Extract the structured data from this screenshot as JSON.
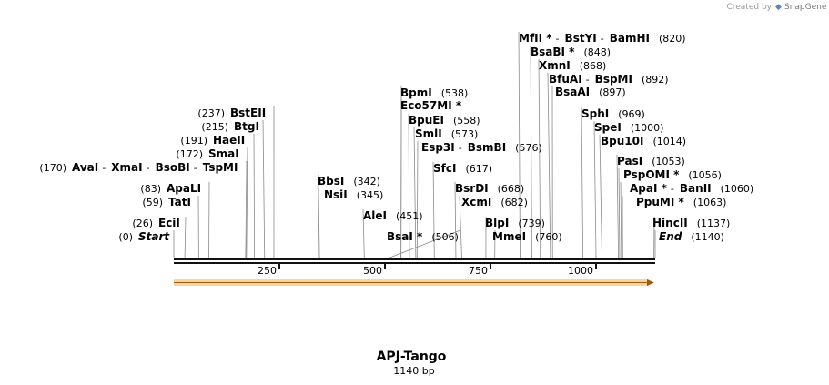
{
  "credit": {
    "created_by": "Created by",
    "brand": "SnapGene"
  },
  "construct": {
    "name": "APJ-Tango",
    "length_label": "1140 bp",
    "length": 1140
  },
  "scale": {
    "ticks": [
      250,
      500,
      750,
      1000
    ]
  },
  "colors": {
    "feature_fill": "#f5b043",
    "feature_stroke": "#c9893a",
    "backbone": "#111111"
  },
  "sites": [
    {
      "names": [
        "Start"
      ],
      "pos": "(0)",
      "loc": 0,
      "italic": true
    },
    {
      "names": [
        "EciI"
      ],
      "pos": "(26)",
      "loc": 26
    },
    {
      "names": [
        "TatI"
      ],
      "pos": "(59)",
      "loc": 59
    },
    {
      "names": [
        "ApaLI"
      ],
      "pos": "(83)",
      "loc": 83
    },
    {
      "names": [
        "AvaI",
        "XmaI",
        "BsoBI",
        "TspMI"
      ],
      "pos": "(170)",
      "loc": 170
    },
    {
      "names": [
        "SmaI"
      ],
      "pos": "(172)",
      "loc": 172
    },
    {
      "names": [
        "HaeII"
      ],
      "pos": "(191)",
      "loc": 191
    },
    {
      "names": [
        "BtgI"
      ],
      "pos": "(215)",
      "loc": 215
    },
    {
      "names": [
        "BstEII"
      ],
      "pos": "(237)",
      "loc": 237
    },
    {
      "names": [
        "BbsI"
      ],
      "pos": "(342)",
      "loc": 342
    },
    {
      "names": [
        "NsiI"
      ],
      "pos": "(345)",
      "loc": 345
    },
    {
      "names": [
        "AleI"
      ],
      "pos": "(451)",
      "loc": 451
    },
    {
      "names": [
        "BsaI *"
      ],
      "pos": "(506)",
      "loc": 506
    },
    {
      "names": [
        "BpmI"
      ],
      "pos": "(538)",
      "loc": 538
    },
    {
      "names": [
        "Eco57MI *"
      ],
      "pos": "",
      "loc": 538
    },
    {
      "names": [
        "BpuEI"
      ],
      "pos": "(558)",
      "loc": 558
    },
    {
      "names": [
        "SmlI"
      ],
      "pos": "(573)",
      "loc": 573
    },
    {
      "names": [
        "Esp3I",
        "BsmBI"
      ],
      "pos": "(576)",
      "loc": 576
    },
    {
      "names": [
        "SfcI"
      ],
      "pos": "(617)",
      "loc": 617
    },
    {
      "names": [
        "BsrDI"
      ],
      "pos": "(668)",
      "loc": 668
    },
    {
      "names": [
        "XcmI"
      ],
      "pos": "(682)",
      "loc": 682
    },
    {
      "names": [
        "BlpI"
      ],
      "pos": "(739)",
      "loc": 739
    },
    {
      "names": [
        "MmeI"
      ],
      "pos": "(760)",
      "loc": 760
    },
    {
      "names": [
        "MfII *",
        "BstYI",
        "BamHI"
      ],
      "pos": "(820)",
      "loc": 820
    },
    {
      "names": [
        "BsaBI *"
      ],
      "pos": "(848)",
      "loc": 848
    },
    {
      "names": [
        "XmnI"
      ],
      "pos": "(868)",
      "loc": 868
    },
    {
      "names": [
        "BfuAI",
        "BspMI"
      ],
      "pos": "(892)",
      "loc": 892
    },
    {
      "names": [
        "BsaAI"
      ],
      "pos": "(897)",
      "loc": 897
    },
    {
      "names": [
        "SphI"
      ],
      "pos": "(969)",
      "loc": 969
    },
    {
      "names": [
        "SpeI"
      ],
      "pos": "(1000)",
      "loc": 1000
    },
    {
      "names": [
        "Bpu10I"
      ],
      "pos": "(1014)",
      "loc": 1014
    },
    {
      "names": [
        "PasI"
      ],
      "pos": "(1053)",
      "loc": 1053
    },
    {
      "names": [
        "PspOMI *"
      ],
      "pos": "(1056)",
      "loc": 1056
    },
    {
      "names": [
        "ApaI *",
        "BanII"
      ],
      "pos": "(1060)",
      "loc": 1060
    },
    {
      "names": [
        "PpuMI *"
      ],
      "pos": "(1063)",
      "loc": 1063
    },
    {
      "names": [
        "HincII"
      ],
      "pos": "(1137)",
      "loc": 1137
    },
    {
      "names": [
        "End"
      ],
      "pos": "(1140)",
      "loc": 1140,
      "italic": true
    }
  ]
}
